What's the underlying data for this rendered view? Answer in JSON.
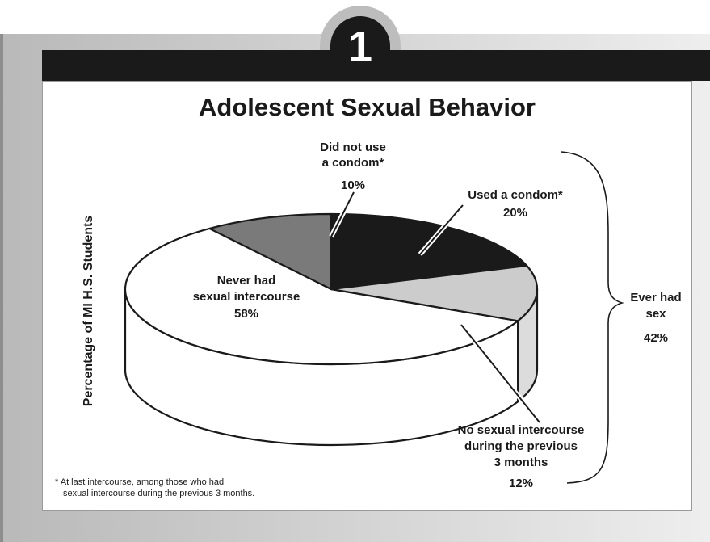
{
  "badge_number": "1",
  "footnote": {
    "line1": "*  At last intercourse, among those who had",
    "line2": "sexual intercourse during the previous 3 months."
  },
  "chart_data": {
    "type": "pie",
    "title": "Adolescent Sexual Behavior",
    "ylabel": "Percentage of MI H.S. Students",
    "three_d": true,
    "slices": [
      {
        "label": "Never had sexual intercourse",
        "label_lines": [
          "Never had",
          "sexual intercourse"
        ],
        "value": 58,
        "value_label": "58%",
        "color": "#ffffff"
      },
      {
        "label": "Did not use a condom*",
        "label_lines": [
          "Did not use",
          "a condom*"
        ],
        "value": 10,
        "value_label": "10%",
        "color": "#7a7a7a"
      },
      {
        "label": "Used a condom*",
        "label_lines": [
          "Used a condom*"
        ],
        "value": 20,
        "value_label": "20%",
        "color": "#1a1a1a"
      },
      {
        "label": "No sexual intercourse during the previous 3 months",
        "label_lines": [
          "No sexual intercourse",
          "during the previous",
          "3 months"
        ],
        "value": 12,
        "value_label": "12%",
        "color": "#cccccc"
      }
    ],
    "bracket": {
      "label": "Ever had sex",
      "label_lines": [
        "Ever had",
        "sex"
      ],
      "value": 42,
      "value_label": "42%"
    }
  }
}
